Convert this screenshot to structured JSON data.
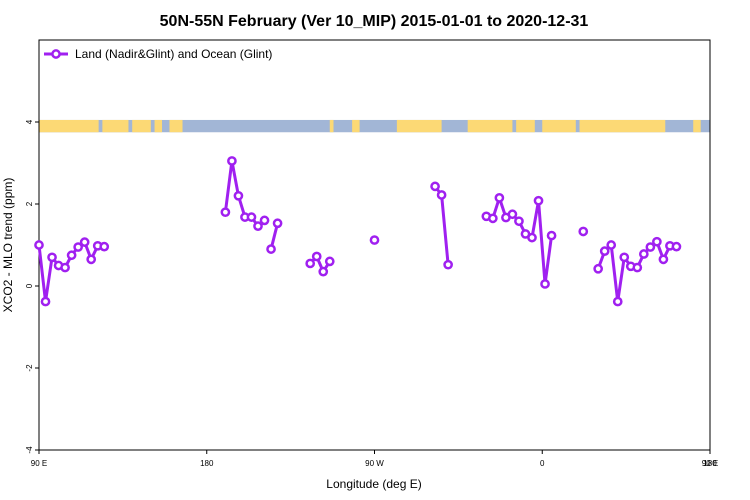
{
  "chart_data": {
    "type": "line",
    "title": "50N-55N February (Ver 10_MIP)   2015-01-01 to 2020-12-31",
    "xlabel": "Longitude (deg E)",
    "ylabel": "XCO2 - MLO trend (ppm)",
    "xlim": [
      90,
      450
    ],
    "ylim": [
      -4,
      6
    ],
    "x_ticks": [
      {
        "value": 90,
        "label": "90 E"
      },
      {
        "value": 180,
        "label": "180"
      },
      {
        "value": 270,
        "label": "90 W"
      },
      {
        "value": 360,
        "label": "0"
      },
      {
        "value": 450,
        "label": "90 E"
      },
      {
        "value": 540,
        "label": "180"
      }
    ],
    "y_ticks": [
      {
        "value": -4,
        "label": "-4"
      },
      {
        "value": -2,
        "label": "-2"
      },
      {
        "value": 0,
        "label": "0"
      },
      {
        "value": 2,
        "label": "2"
      },
      {
        "value": 4,
        "label": "4"
      }
    ],
    "grid": false,
    "legend_position": "top-left",
    "land_ocean_band": {
      "y_range": [
        3.75,
        4.05
      ],
      "land_color": "#fcd975",
      "ocean_color": "#a2b6d6"
    },
    "series": [
      {
        "name": "Land (Nadir&Glint) and Ocean (Glint)",
        "color": "#a020f0",
        "segments": [
          [
            [
              90,
              1.0
            ],
            [
              93.5,
              -0.38
            ],
            [
              97,
              0.7
            ],
            [
              100.5,
              0.5
            ],
            [
              104,
              0.45
            ],
            [
              107.5,
              0.75
            ],
            [
              111,
              0.95
            ],
            [
              114.5,
              1.07
            ],
            [
              118,
              0.65
            ],
            [
              121.5,
              0.98
            ],
            [
              125,
              0.96
            ]
          ],
          [
            [
              190,
              1.8
            ],
            [
              193.5,
              3.05
            ],
            [
              197,
              2.2
            ],
            [
              200.5,
              1.68
            ],
            [
              204,
              1.68
            ],
            [
              207.5,
              1.46
            ],
            [
              211,
              1.6
            ]
          ],
          [
            [
              214.5,
              0.9
            ],
            [
              218,
              1.53
            ]
          ],
          [
            [
              235.5,
              0.55
            ],
            [
              239,
              0.72
            ],
            [
              242.5,
              0.35
            ],
            [
              246,
              0.6
            ]
          ],
          [
            [
              302.5,
              2.43
            ],
            [
              306,
              2.22
            ],
            [
              309.5,
              0.52
            ]
          ],
          [
            [
              330,
              1.7
            ],
            [
              333.5,
              1.65
            ],
            [
              337,
              2.15
            ],
            [
              340.5,
              1.67
            ],
            [
              344,
              1.75
            ],
            [
              347.5,
              1.58
            ],
            [
              351,
              1.27
            ],
            [
              354.5,
              1.18
            ],
            [
              358,
              2.08
            ],
            [
              361.5,
              0.05
            ],
            [
              365,
              1.23
            ]
          ],
          [
            [
              390,
              0.42
            ],
            [
              393.5,
              0.85
            ],
            [
              397,
              1.0
            ],
            [
              400.5,
              -0.38
            ],
            [
              404,
              0.7
            ],
            [
              407.5,
              0.48
            ],
            [
              411,
              0.45
            ],
            [
              414.5,
              0.78
            ],
            [
              418,
              0.95
            ],
            [
              421.5,
              1.08
            ],
            [
              425,
              0.65
            ],
            [
              428.5,
              0.98
            ],
            [
              432,
              0.96
            ]
          ]
        ],
        "isolated_points": [
          [
            270,
            1.12
          ],
          [
            382,
            1.33
          ]
        ]
      }
    ]
  }
}
